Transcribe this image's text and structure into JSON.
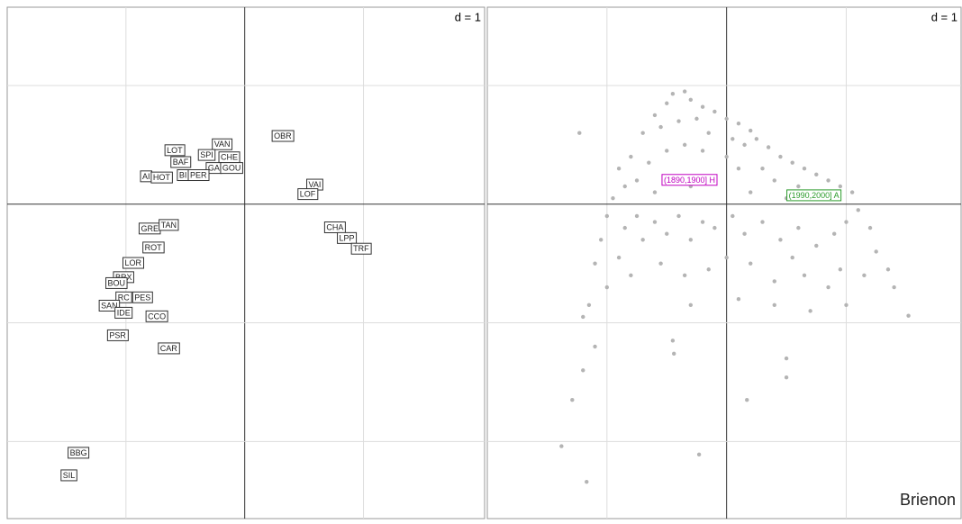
{
  "chart_data": [
    {
      "type": "label-scatter",
      "scale_label": "d = 1",
      "xlim": [
        -2,
        2.02
      ],
      "ylim": [
        -2.65,
        1.66
      ],
      "xticks": [
        -1,
        0,
        1
      ],
      "yticks": [
        -2,
        -1,
        0,
        1
      ],
      "grid": true,
      "labels": [
        "OBR",
        "VAN",
        "LOT",
        "SPI",
        "CHE",
        "BAF",
        "GA",
        "GOU",
        "BI",
        "PER",
        "AI",
        "HOT",
        "VAI",
        "LOF",
        "CHA",
        "LPP",
        "TRF",
        "GRE",
        "TAN",
        "ROT",
        "LOR",
        "BRX",
        "BOU",
        "PES",
        "RC",
        "SAN",
        "IDE",
        "CCO",
        "PSR",
        "CAR",
        "BBG",
        "SIL"
      ],
      "x": [
        0.32,
        -0.19,
        -0.59,
        -0.32,
        -0.13,
        -0.54,
        -0.26,
        -0.11,
        -0.52,
        -0.39,
        -0.83,
        -0.7,
        0.59,
        0.53,
        0.76,
        0.86,
        0.98,
        -0.8,
        -0.64,
        -0.77,
        -0.94,
        -1.02,
        -1.08,
        -0.86,
        -1.02,
        -1.14,
        -1.02,
        -0.74,
        -1.07,
        -0.64,
        -1.4,
        -1.48
      ],
      "y": [
        0.57,
        0.5,
        0.45,
        0.41,
        0.39,
        0.35,
        0.3,
        0.3,
        0.24,
        0.24,
        0.23,
        0.22,
        0.16,
        0.08,
        -0.2,
        -0.29,
        -0.38,
        -0.21,
        -0.18,
        -0.37,
        -0.5,
        -0.62,
        -0.67,
        -0.79,
        -0.79,
        -0.86,
        -0.92,
        -0.95,
        -1.11,
        -1.22,
        -2.1,
        -2.29
      ]
    },
    {
      "type": "scatter",
      "scale_label": "d = 1",
      "title": "Brienon",
      "xlim": [
        -2,
        1.96
      ],
      "ylim": [
        -2.65,
        1.66
      ],
      "xticks": [
        -1,
        0,
        1
      ],
      "yticks": [
        -2,
        -1,
        0,
        1
      ],
      "grid": true,
      "color": "#b4b4b4",
      "x": [
        -0.5,
        -0.45,
        -0.35,
        -0.3,
        -0.2,
        -0.1,
        0,
        0.1,
        0.2,
        -0.6,
        -0.7,
        -0.55,
        -0.4,
        -0.25,
        -0.15,
        0.05,
        0.15,
        0.25,
        0.35,
        0.45,
        0.55,
        0.65,
        0.75,
        0.85,
        0.95,
        1.05,
        -0.8,
        -0.9,
        -0.85,
        -0.75,
        -0.65,
        -0.5,
        -0.35,
        -0.2,
        0,
        0.1,
        0.3,
        0.4,
        0.6,
        0.7,
        0.9,
        -0.95,
        -0.6,
        -0.3,
        0.2,
        0.5,
        -1.0,
        -1.05,
        -1.1,
        -1.0,
        -1.15,
        -1.2,
        -0.85,
        -0.9,
        -0.8,
        -0.7,
        -0.6,
        -0.75,
        -0.5,
        -0.4,
        -0.3,
        -0.2,
        -0.1,
        0.05,
        0.15,
        0.3,
        0.45,
        0.6,
        0.75,
        0.9,
        1.0,
        1.1,
        1.2,
        1.25,
        1.35,
        1.4,
        1.15,
        0.95,
        0.85,
        0.65,
        0.55,
        0.4,
        0.2,
        0.0,
        -0.15,
        -0.35,
        -0.55,
        -0.3,
        0.1,
        0.4,
        0.7,
        1.0,
        -1.23,
        1.52,
        -1.38,
        -1.17,
        -0.23,
        -1.29,
        -0.44,
        0.17,
        0.5,
        -1.1,
        -1.2,
        0.5,
        -0.45
      ],
      "y": [
        0.85,
        0.93,
        0.95,
        0.88,
        0.82,
        0.78,
        0.72,
        0.68,
        0.62,
        0.75,
        0.6,
        0.65,
        0.7,
        0.72,
        0.6,
        0.55,
        0.5,
        0.55,
        0.48,
        0.4,
        0.35,
        0.3,
        0.25,
        0.2,
        0.15,
        0.1,
        0.4,
        0.3,
        0.15,
        0.2,
        0.35,
        0.45,
        0.5,
        0.45,
        0.4,
        0.3,
        0.3,
        0.2,
        0.15,
        0.05,
        0.05,
        0.05,
        0.1,
        0.15,
        0.1,
        0.05,
        -0.1,
        -0.3,
        -0.5,
        -0.7,
        -0.85,
        -0.95,
        -0.2,
        -0.45,
        -0.6,
        -0.3,
        -0.15,
        -0.1,
        -0.25,
        -0.1,
        -0.3,
        -0.15,
        -0.2,
        -0.1,
        -0.25,
        -0.15,
        -0.3,
        -0.2,
        -0.35,
        -0.25,
        -0.15,
        -0.05,
        -0.2,
        -0.4,
        -0.55,
        -0.7,
        -0.6,
        -0.55,
        -0.7,
        -0.6,
        -0.45,
        -0.65,
        -0.5,
        -0.45,
        -0.55,
        -0.6,
        -0.5,
        -0.85,
        -0.8,
        -0.85,
        -0.9,
        -0.85,
        0.6,
        -0.94,
        -2.04,
        -2.34,
        -2.11,
        -1.65,
        -1.26,
        -1.65,
        -1.46,
        -1.2,
        -1.4,
        -1.3,
        -1.15
      ],
      "annotations": [
        {
          "text": "(1890,1900] H",
          "x": -0.31,
          "y": 0.2,
          "color": "#c000c0"
        },
        {
          "text": "(1990,2000] A",
          "x": 0.73,
          "y": 0.07,
          "color": "#2a9a2a"
        }
      ]
    }
  ]
}
